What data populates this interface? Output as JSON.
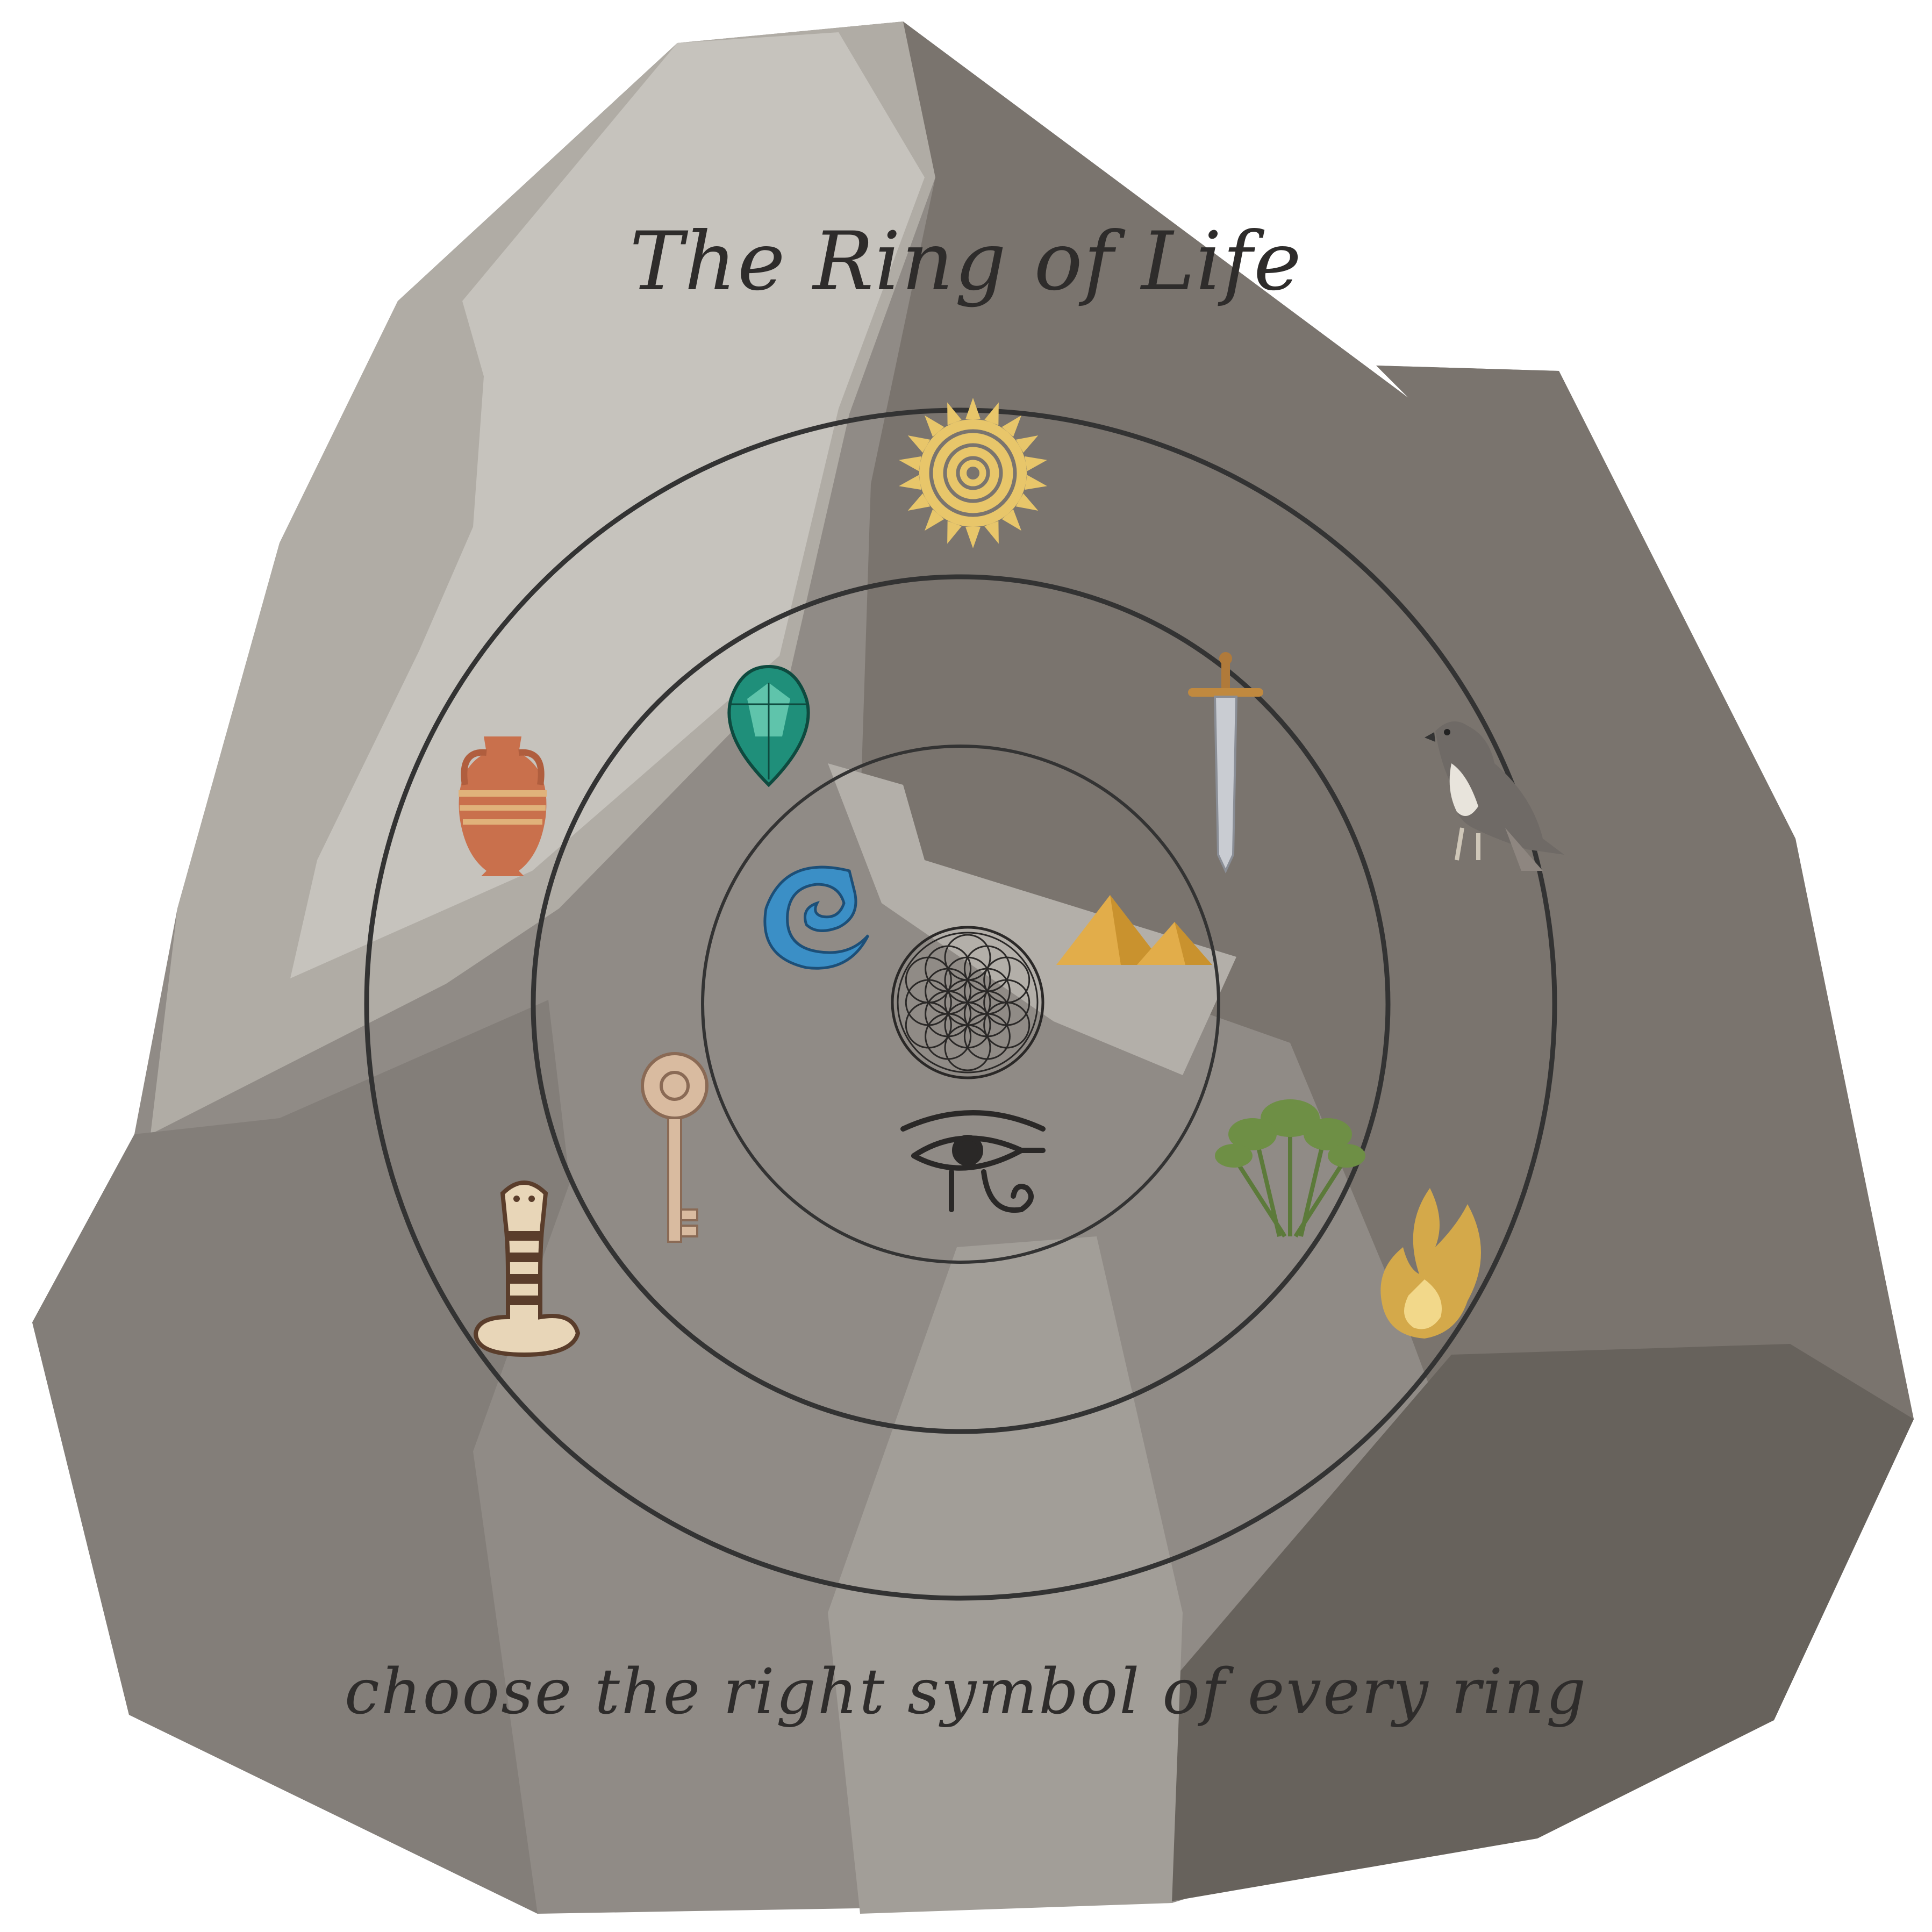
{
  "title": "The Ring of Life",
  "instruction": "choose the right symbol of every ring",
  "colors": {
    "ring_stroke": "#333333",
    "gold": "#e8c66a",
    "emerald": "#1f8f7a",
    "water": "#3b8fc6",
    "terracotta": "#c9704c"
  },
  "symbols": [
    {
      "name": "sun-icon",
      "ring": "outer"
    },
    {
      "name": "amphora-icon",
      "ring": "outer"
    },
    {
      "name": "falcon-icon",
      "ring": "outer"
    },
    {
      "name": "cobra-icon",
      "ring": "outer"
    },
    {
      "name": "fire-icon",
      "ring": "outer"
    },
    {
      "name": "emerald-icon",
      "ring": "middle"
    },
    {
      "name": "sword-icon",
      "ring": "middle"
    },
    {
      "name": "key-icon",
      "ring": "middle"
    },
    {
      "name": "papyrus-icon",
      "ring": "middle"
    },
    {
      "name": "wave-icon",
      "ring": "inner"
    },
    {
      "name": "pyramids-icon",
      "ring": "inner"
    },
    {
      "name": "eye-of-horus-icon",
      "ring": "inner"
    },
    {
      "name": "flower-of-life-icon",
      "ring": "center"
    }
  ]
}
